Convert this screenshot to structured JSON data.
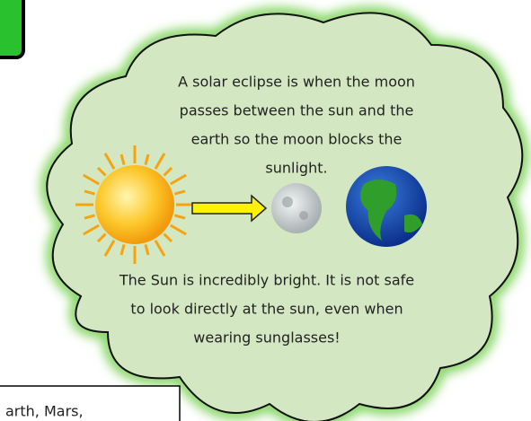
{
  "eclipse_text": {
    "lines": [
      "A solar eclipse is when the moon",
      "passes between the sun and the",
      "earth so the moon blocks the",
      "sunlight."
    ]
  },
  "safety_text": {
    "lines": [
      "The Sun is incredibly bright. It is not safe",
      "to look directly at the sun, even when",
      "wearing sunglasses!"
    ]
  },
  "side_box": {
    "text": "arth, Mars,"
  }
}
